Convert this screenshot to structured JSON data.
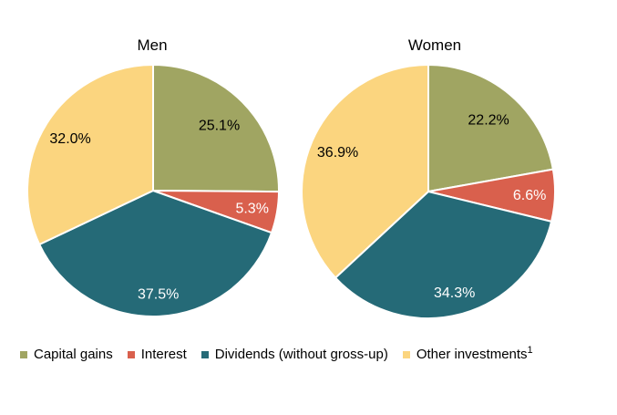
{
  "figure": {
    "background": "#ffffff"
  },
  "chart_data": [
    {
      "type": "pie",
      "title": "Men",
      "categories": [
        "Capital gains",
        "Interest",
        "Dividends (without gross-up)",
        "Other investments"
      ],
      "values": [
        25.1,
        5.3,
        37.5,
        32.0
      ],
      "value_labels": [
        "25.1%",
        "5.3%",
        "37.5%",
        "32.0%"
      ],
      "colors": [
        "#a0a562",
        "#d9604d",
        "#256a77",
        "#fbd57f"
      ],
      "label_colors": [
        "#000000",
        "#ffffff",
        "#ffffff",
        "#000000"
      ],
      "start_angle_deg": 0,
      "direction": "clockwise",
      "slice_border_color": "#ffffff"
    },
    {
      "type": "pie",
      "title": "Women",
      "categories": [
        "Capital gains",
        "Interest",
        "Dividends (without gross-up)",
        "Other investments"
      ],
      "values": [
        22.2,
        6.6,
        34.3,
        36.9
      ],
      "value_labels": [
        "22.2%",
        "6.6%",
        "34.3%",
        "36.9%"
      ],
      "colors": [
        "#a0a562",
        "#d9604d",
        "#256a77",
        "#fbd57f"
      ],
      "label_colors": [
        "#000000",
        "#ffffff",
        "#ffffff",
        "#000000"
      ],
      "start_angle_deg": 0,
      "direction": "clockwise",
      "slice_border_color": "#ffffff"
    }
  ],
  "legend": {
    "items": [
      {
        "label": "Capital gains",
        "color": "#a0a562"
      },
      {
        "label": "Interest",
        "color": "#d9604d"
      },
      {
        "label": "Dividends (without gross-up)",
        "color": "#256a77"
      },
      {
        "label": "Other investments",
        "color": "#fbd57f",
        "superscript": "1"
      }
    ]
  }
}
